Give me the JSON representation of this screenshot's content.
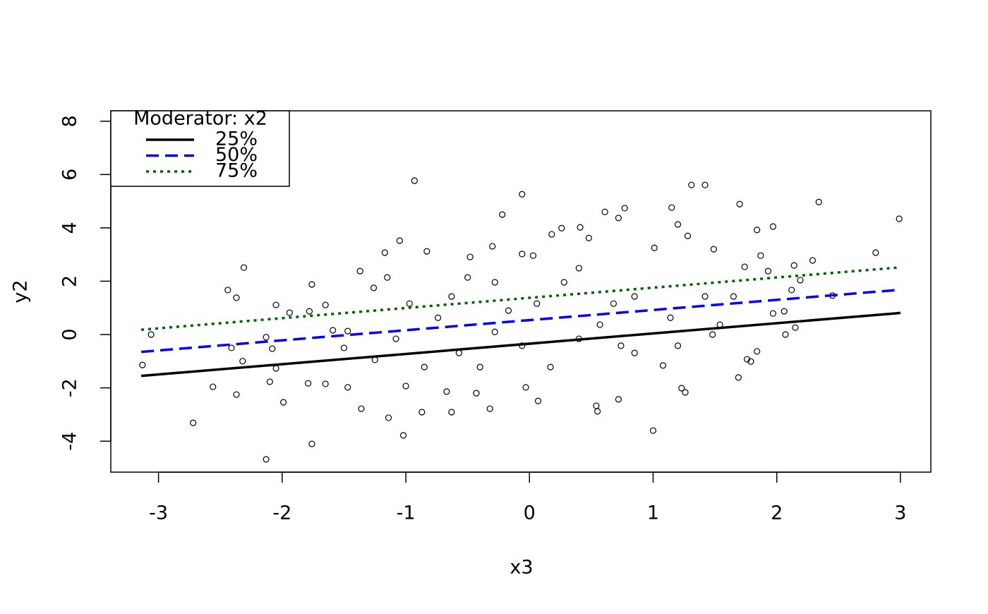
{
  "chart_data": {
    "type": "scatter",
    "x_label": "x3",
    "y_label": "y2",
    "xlim": [
      -3.386,
      3.246
    ],
    "ylim": [
      -5.16,
      8.39
    ],
    "xticks": [
      -3,
      -2,
      -1,
      0,
      1,
      2,
      3
    ],
    "yticks": [
      -4,
      -2,
      0,
      2,
      4,
      6,
      8
    ],
    "legend_title": "Moderator: x2",
    "legend_position": "top-left",
    "points": {
      "color": "#000000",
      "x": [
        -3.13,
        -3.06,
        -2.72,
        -2.56,
        -2.44,
        -2.41,
        -2.37,
        -2.37,
        -2.32,
        -2.31,
        -2.13,
        -2.13,
        -2.1,
        -2.08,
        -2.05,
        -2.05,
        -1.99,
        -1.94,
        -1.79,
        -1.76,
        -1.76,
        -1.78,
        -1.65,
        -1.65,
        -1.59,
        -1.5,
        -1.47,
        -1.47,
        -1.37,
        -1.36,
        -1.26,
        -1.17,
        -1.14,
        -1.15,
        -1.05,
        -1.02,
        -1.0,
        -0.93,
        -0.83,
        -0.87,
        -0.67,
        -0.63,
        -0.5,
        -0.48,
        -0.43,
        -0.32,
        -0.3,
        -0.22,
        -0.06,
        -0.03,
        0.03,
        0.07,
        0.18,
        0.26,
        0.41,
        0.48,
        0.61,
        0.72,
        0.77,
        0.72,
        0.54,
        0.55,
        1.0,
        1.01,
        1.15,
        1.2,
        1.28,
        1.31,
        1.42,
        1.49,
        1.7,
        1.69,
        1.74,
        1.76,
        1.79,
        1.84,
        1.84,
        1.87,
        1.93,
        1.97,
        1.97,
        2.06,
        2.07,
        2.12,
        2.14,
        2.15,
        2.19,
        2.29,
        2.34,
        2.45,
        2.8,
        2.99,
        -0.28,
        -0.06,
        0.06,
        0.28,
        -0.57,
        -0.74,
        -0.4,
        -0.17,
        0.57,
        0.85,
        0.74,
        1.14,
        1.42,
        1.54,
        -1.08,
        -0.97,
        -1.25,
        -0.85,
        0.17,
        0.4,
        -0.63,
        -0.28,
        -0.06,
        0.4,
        0.68,
        1.2,
        1.65,
        0.85,
        1.08,
        1.48,
        1.23,
        1.26
      ],
      "values": [
        -1.14,
        0,
        -3.31,
        -1.96,
        1.67,
        -0.5,
        1.38,
        -2.25,
        -1.0,
        2.51,
        -4.68,
        -0.1,
        -1.77,
        -0.53,
        1.11,
        -1.27,
        -2.54,
        0.82,
        -1.83,
        1.88,
        -4.1,
        0.87,
        1.11,
        -1.85,
        0.16,
        -0.5,
        -1.98,
        0.13,
        2.38,
        -2.78,
        1.75,
        3.07,
        -3.12,
        2.14,
        3.52,
        -3.78,
        -1.93,
        5.77,
        3.12,
        -2.91,
        -2.14,
        -2.91,
        2.14,
        2.91,
        -2.2,
        -2.78,
        3.31,
        4.5,
        5.26,
        -1.98,
        2.96,
        -2.49,
        3.76,
        3.99,
        4.02,
        3.62,
        4.6,
        4.37,
        4.74,
        -2.43,
        -2.67,
        -2.88,
        -3.6,
        3.25,
        4.76,
        4.13,
        3.7,
        5.61,
        5.61,
        3.2,
        4.89,
        -1.61,
        2.54,
        -0.93,
        -1.01,
        3.92,
        -0.63,
        2.96,
        2.38,
        4.05,
        0.79,
        0.87,
        0,
        1.67,
        2.59,
        0.26,
        2.04,
        2.78,
        4.97,
        1.46,
        3.07,
        4.34,
        0.1,
        -0.42,
        1.16,
        1.96,
        -0.69,
        0.63,
        -1.22,
        0.9,
        0.37,
        1.43,
        -0.42,
        0.63,
        1.43,
        0.37,
        -0.16,
        1.16,
        -0.95,
        -1.22,
        -1.22,
        -0.16,
        1.43,
        1.96,
        3.02,
        2.49,
        1.16,
        -0.42,
        1.43,
        -0.69,
        -1.16,
        0,
        -2.01,
        -2.17
      ]
    },
    "lines": [
      {
        "name": "25%",
        "color": "#000000",
        "linestyle": "solid",
        "x": [
          -3.14,
          3.0
        ],
        "values": [
          -1.55,
          0.81
        ]
      },
      {
        "name": "50%",
        "color": "#0000ff",
        "linestyle": "dashed",
        "x": [
          -3.14,
          3.0
        ],
        "values": [
          -0.65,
          1.68
        ]
      },
      {
        "name": "75%",
        "color": "#006400",
        "linestyle": "dotted",
        "x": [
          -3.14,
          3.0
        ],
        "values": [
          0.18,
          2.52
        ]
      }
    ]
  }
}
